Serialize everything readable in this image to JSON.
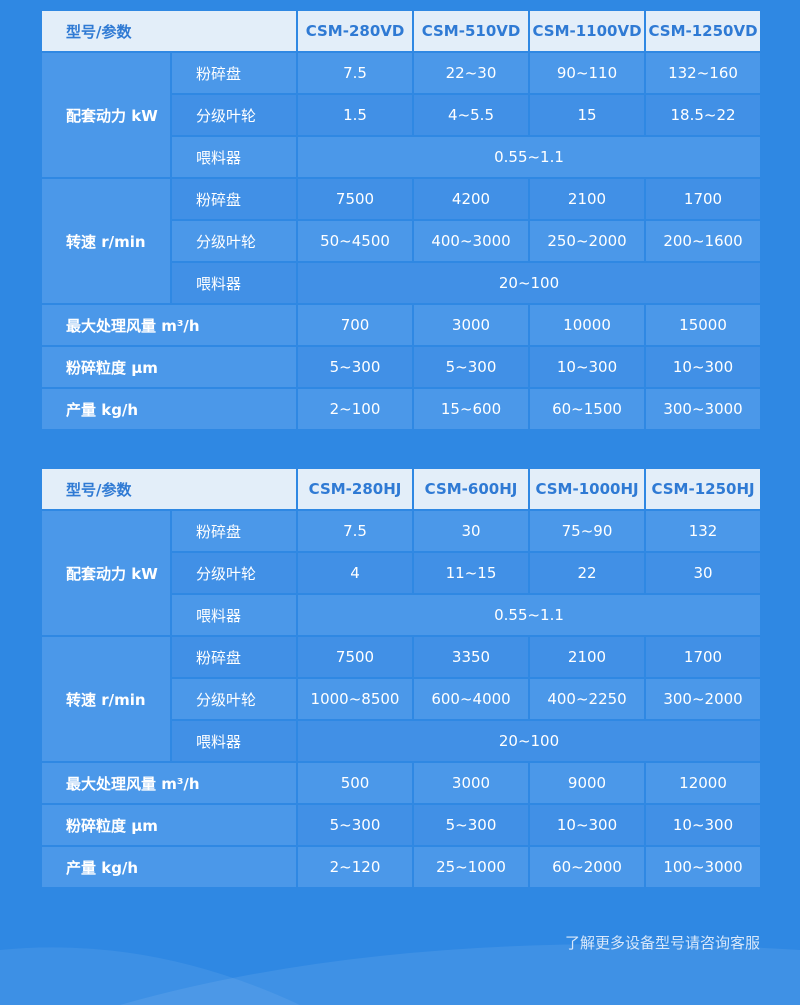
{
  "tables": [
    {
      "header": [
        "型号/参数",
        "CSM-280VD",
        "CSM-510VD",
        "CSM-1100VD",
        "CSM-1250VD"
      ],
      "groups": [
        {
          "label": "配套动力 kW",
          "rows": [
            {
              "sub": "粉碎盘",
              "values": [
                "7.5",
                "22~30",
                "90~110",
                "132~160"
              ]
            },
            {
              "sub": "分级叶轮",
              "values": [
                "1.5",
                "4~5.5",
                "15",
                "18.5~22"
              ]
            },
            {
              "sub": "喂料器",
              "span": "0.55~1.1"
            }
          ]
        },
        {
          "label": "转速 r/min",
          "rows": [
            {
              "sub": "粉碎盘",
              "values": [
                "7500",
                "4200",
                "2100",
                "1700"
              ]
            },
            {
              "sub": "分级叶轮",
              "values": [
                "50~4500",
                "400~3000",
                "250~2000",
                "200~1600"
              ]
            },
            {
              "sub": "喂料器",
              "span": "20~100"
            }
          ]
        }
      ],
      "rows": [
        {
          "label": "最大处理风量 m³/h",
          "values": [
            "700",
            "3000",
            "10000",
            "15000"
          ]
        },
        {
          "label": "粉碎粒度 μm",
          "values": [
            "5~300",
            "5~300",
            "10~300",
            "10~300"
          ]
        },
        {
          "label": "产量 kg/h",
          "values": [
            "2~100",
            "15~600",
            "60~1500",
            "300~3000"
          ]
        }
      ]
    },
    {
      "header": [
        "型号/参数",
        "CSM-280HJ",
        "CSM-600HJ",
        "CSM-1000HJ",
        "CSM-1250HJ"
      ],
      "groups": [
        {
          "label": "配套动力 kW",
          "rows": [
            {
              "sub": "粉碎盘",
              "values": [
                "7.5",
                "30",
                "75~90",
                "132"
              ]
            },
            {
              "sub": "分级叶轮",
              "values": [
                "4",
                "11~15",
                "22",
                "30"
              ]
            },
            {
              "sub": "喂料器",
              "span": "0.55~1.1"
            }
          ]
        },
        {
          "label": "转速 r/min",
          "rows": [
            {
              "sub": "粉碎盘",
              "values": [
                "7500",
                "3350",
                "2100",
                "1700"
              ]
            },
            {
              "sub": "分级叶轮",
              "values": [
                "1000~8500",
                "600~4000",
                "400~2250",
                "300~2000"
              ]
            },
            {
              "sub": "喂料器",
              "span": "20~100"
            }
          ]
        }
      ],
      "rows": [
        {
          "label": "最大处理风量 m³/h",
          "values": [
            "500",
            "3000",
            "9000",
            "12000"
          ]
        },
        {
          "label": "粉碎粒度 μm",
          "values": [
            "5~300",
            "5~300",
            "10~300",
            "10~300"
          ]
        },
        {
          "label": "产量 kg/h",
          "values": [
            "2~120",
            "25~1000",
            "60~2000",
            "100~3000"
          ]
        }
      ]
    }
  ],
  "footer": "了解更多设备型号请咨询客服",
  "colors": {
    "background": "#2f88e3",
    "header_bg": "#e3eef9",
    "header_text": "#2f7ad4"
  }
}
